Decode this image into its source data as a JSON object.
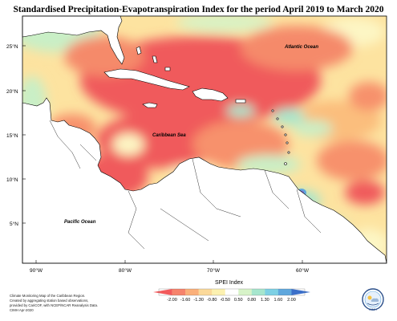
{
  "title": "Standardised Precipitation-Evapotranspiration Index for the period April 2019 to March 2020",
  "lat_labels": [
    "25°N",
    "20°N",
    "15°N",
    "10°N",
    "5°N"
  ],
  "lon_labels": [
    "90°W",
    "80°W",
    "70°W",
    "60°W"
  ],
  "region_labels": {
    "atlantic": "Atlantic Ocean",
    "caribbean": "Caribbean Sea",
    "pacific": "Pacific Ocean"
  },
  "legend": {
    "title": "SPEI Index",
    "ticks": [
      "-2.00",
      "-1.60",
      "-1.30",
      "-0.80",
      "-0.50",
      "0.50",
      "0.80",
      "1.30",
      "1.60",
      "2.00"
    ],
    "colors": [
      "#f25a5c",
      "#f6836c",
      "#fbb07a",
      "#fbd99a",
      "#fcf1b0",
      "#ffffff",
      "#d7f3c8",
      "#a6e6cd",
      "#7dd0e4",
      "#5fa7dd",
      "#3b6fc9"
    ]
  },
  "credits": [
    "Climate Monitoring Map of the Caribbean Region.",
    "Created by aggregating station based observations,",
    "provided by CariCOF, with NCEP/NCAR Reanalysis Data.",
    "",
    "CIMH Apr-2020"
  ],
  "logo_text": "CIMH",
  "palette": {
    "deep_dry": "#f05a5c",
    "dry": "#f7916c",
    "mod_dry": "#fbbe7d",
    "mild_dry": "#fde3a0",
    "normal": "#fdf6c4",
    "wet": "#c9efc6",
    "very_wet": "#8fdfd6"
  }
}
